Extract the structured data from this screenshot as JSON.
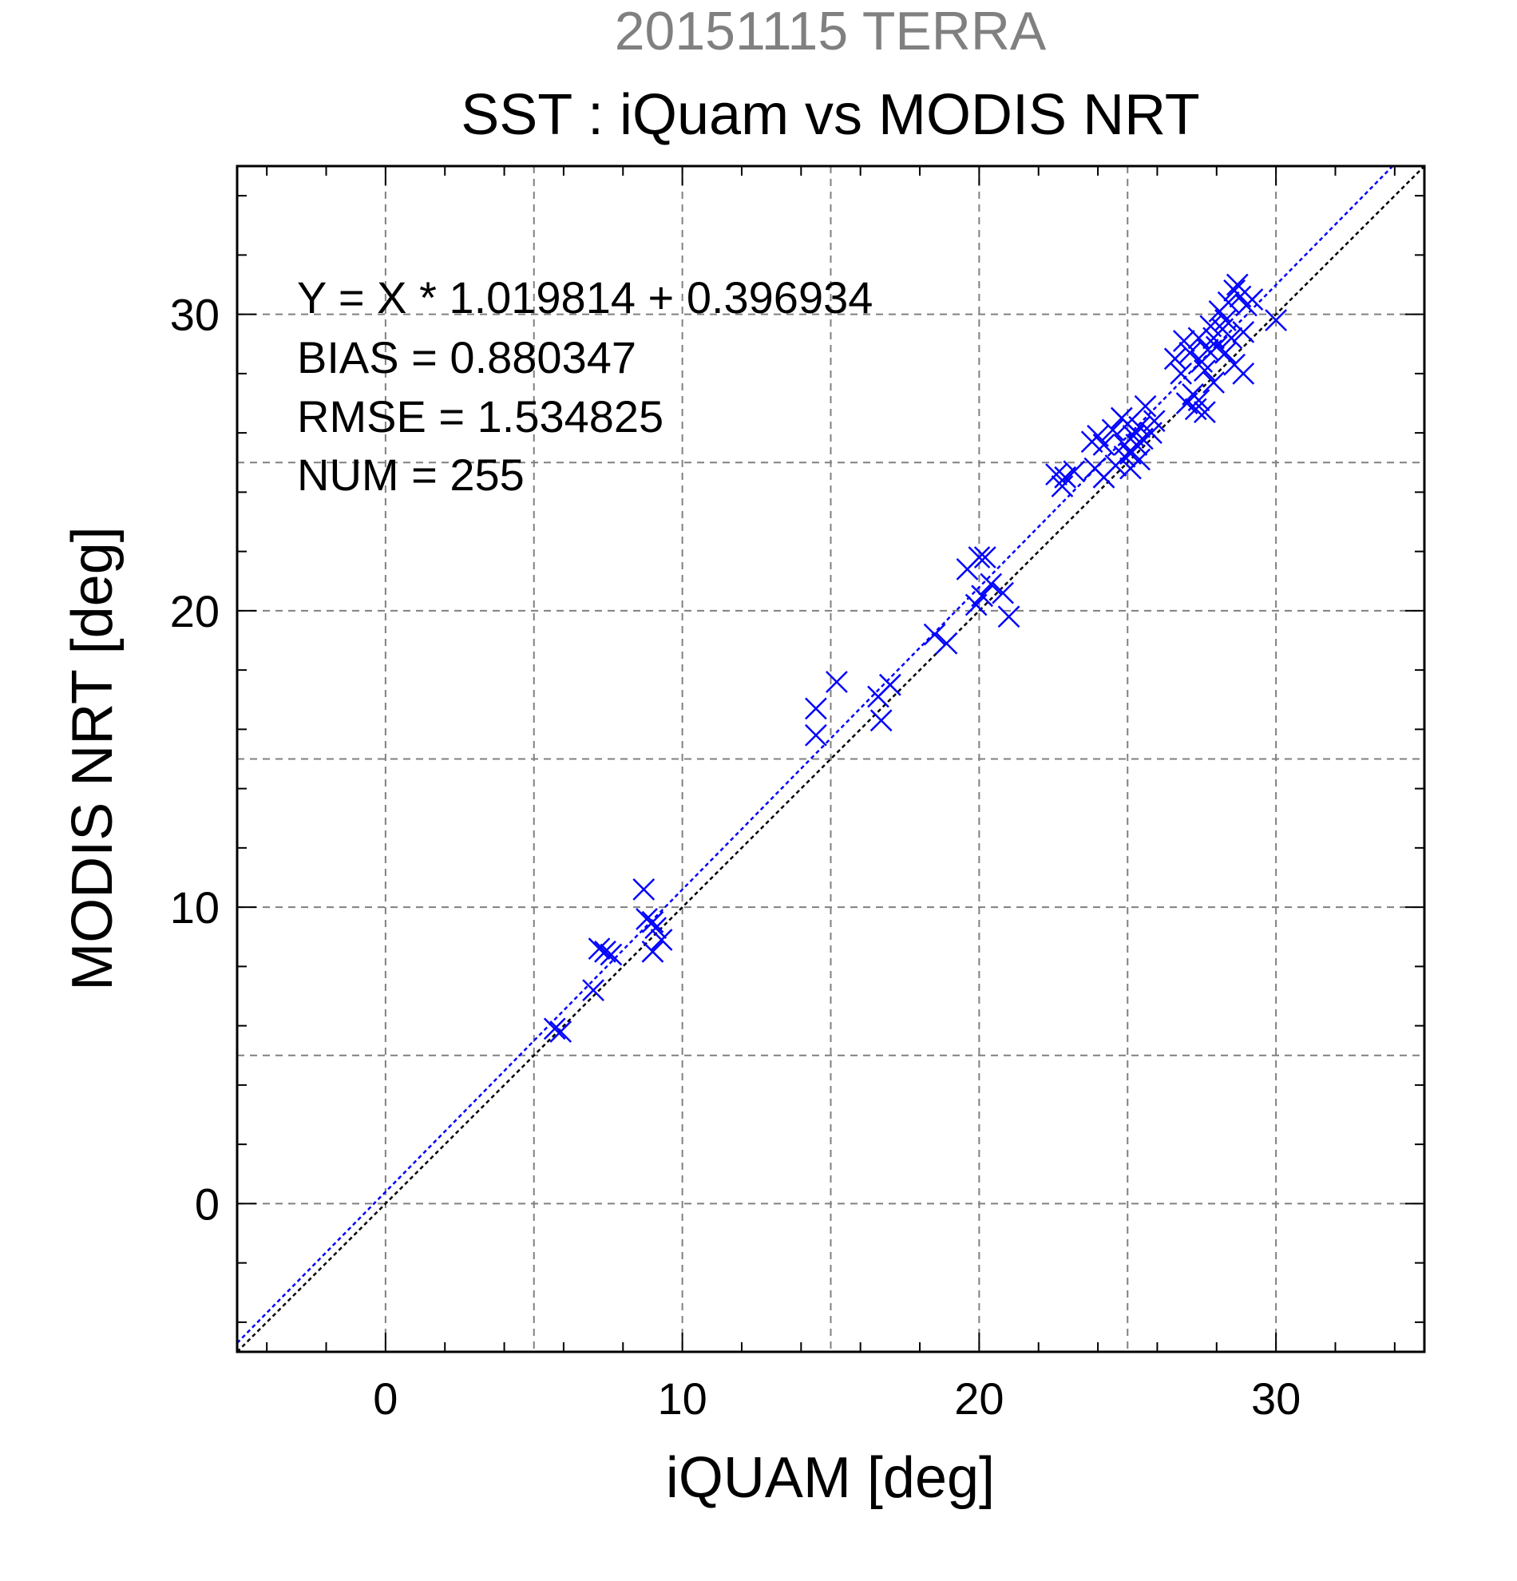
{
  "chart_data": {
    "type": "scatter",
    "supertitle": "20151115 TERRA",
    "title": "SST : iQuam vs MODIS NRT",
    "xlabel": "iQUAM [deg]",
    "ylabel": "MODIS NRT [deg]",
    "xlim": [
      -5,
      35
    ],
    "ylim": [
      -5,
      35
    ],
    "xticks": [
      0,
      10,
      20,
      30
    ],
    "yticks": [
      0,
      10,
      20,
      30
    ],
    "grid": true,
    "stats": [
      "Y = X * 1.019814 + 0.396934",
      "BIAS = 0.880347",
      "RMSE = 1.534825",
      "NUM = 255"
    ],
    "colors": {
      "points": "#0000ff",
      "fit_line": "#0000ff",
      "identity_line": "#000000",
      "supertitle": "#808080",
      "grid": "#808080"
    },
    "fit_line": {
      "slope": 1.019814,
      "intercept": 0.396934
    },
    "identity_line": {
      "slope": 1,
      "intercept": 0
    },
    "points": [
      [
        5.7,
        5.9
      ],
      [
        5.9,
        5.8
      ],
      [
        7.0,
        7.2
      ],
      [
        7.2,
        8.6
      ],
      [
        7.4,
        8.5
      ],
      [
        7.6,
        8.4
      ],
      [
        8.7,
        10.6
      ],
      [
        8.8,
        9.6
      ],
      [
        9.0,
        9.5
      ],
      [
        9.1,
        9.3
      ],
      [
        9.0,
        8.5
      ],
      [
        9.3,
        8.9
      ],
      [
        14.5,
        16.7
      ],
      [
        14.5,
        15.8
      ],
      [
        15.2,
        17.6
      ],
      [
        16.6,
        17.1
      ],
      [
        16.7,
        16.3
      ],
      [
        17.0,
        17.5
      ],
      [
        18.5,
        19.2
      ],
      [
        18.9,
        18.9
      ],
      [
        19.6,
        21.4
      ],
      [
        20.0,
        21.8
      ],
      [
        20.2,
        21.8
      ],
      [
        19.9,
        20.2
      ],
      [
        20.1,
        20.5
      ],
      [
        20.4,
        20.9
      ],
      [
        20.8,
        20.6
      ],
      [
        21.0,
        19.8
      ],
      [
        22.6,
        24.6
      ],
      [
        22.8,
        24.2
      ],
      [
        22.9,
        24.5
      ],
      [
        23.2,
        24.7
      ],
      [
        23.8,
        25.7
      ],
      [
        24.0,
        25.9
      ],
      [
        24.2,
        25.6
      ],
      [
        24.5,
        26.1
      ],
      [
        24.8,
        26.5
      ],
      [
        23.9,
        24.8
      ],
      [
        24.2,
        24.5
      ],
      [
        24.6,
        24.9
      ],
      [
        24.9,
        25.2
      ],
      [
        25.0,
        26.3
      ],
      [
        25.2,
        25.9
      ],
      [
        25.4,
        26.2
      ],
      [
        25.6,
        26.9
      ],
      [
        25.1,
        24.8
      ],
      [
        25.4,
        25.1
      ],
      [
        25.5,
        25.8
      ],
      [
        25.8,
        26.0
      ],
      [
        25.9,
        26.4
      ],
      [
        24.9,
        25.6
      ],
      [
        25.1,
        25.3
      ],
      [
        25.3,
        25.6
      ],
      [
        26.6,
        28.5
      ],
      [
        26.8,
        28.0
      ],
      [
        26.9,
        29.1
      ],
      [
        27.0,
        27.0
      ],
      [
        27.1,
        28.7
      ],
      [
        27.2,
        27.3
      ],
      [
        27.3,
        26.8
      ],
      [
        27.4,
        27.1
      ],
      [
        27.4,
        29.2
      ],
      [
        27.5,
        28.4
      ],
      [
        27.6,
        26.7
      ],
      [
        27.7,
        28.8
      ],
      [
        27.8,
        29.6
      ],
      [
        27.9,
        29.2
      ],
      [
        28.0,
        28.9
      ],
      [
        28.1,
        30.1
      ],
      [
        28.2,
        29.5
      ],
      [
        28.3,
        29.8
      ],
      [
        28.4,
        30.4
      ],
      [
        28.5,
        29.2
      ],
      [
        28.6,
        30.8
      ],
      [
        28.7,
        31.0
      ],
      [
        28.8,
        30.6
      ],
      [
        28.9,
        29.4
      ],
      [
        29.0,
        30.3
      ],
      [
        28.6,
        28.3
      ],
      [
        28.9,
        28.0
      ],
      [
        28.3,
        28.7
      ],
      [
        27.6,
        28.1
      ],
      [
        27.9,
        27.7
      ],
      [
        30.0,
        29.8
      ],
      [
        29.2,
        30.5
      ]
    ]
  }
}
